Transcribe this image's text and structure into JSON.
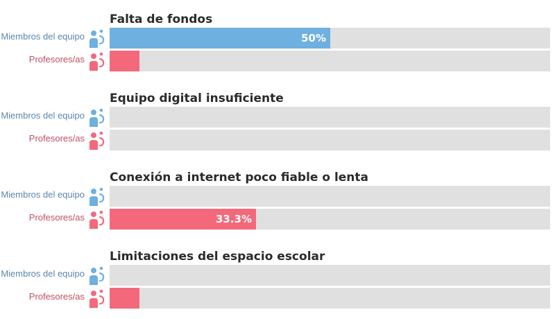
{
  "chart_data": {
    "type": "bar",
    "orientation": "horizontal",
    "xlim": [
      0,
      100
    ],
    "series_labels": [
      "Miembros del equipo",
      "Profesores/as"
    ],
    "series_colors": {
      "Miembros del equipo": "#6eb0df",
      "Profesores/as": "#f3697b"
    },
    "track_color": "#e0e0e0",
    "groups": [
      {
        "title": "Falta de fondos",
        "bars": [
          {
            "label": "Miembros del equipo",
            "series": "team",
            "value": 50,
            "value_label": "50%"
          },
          {
            "label": "Profesores/as",
            "series": "teachers",
            "value": 6.7,
            "value_label": ""
          }
        ]
      },
      {
        "title": "Equipo digital insuficiente",
        "bars": [
          {
            "label": "Miembros del equipo",
            "series": "team",
            "value": 0,
            "value_label": ""
          },
          {
            "label": "Profesores/as",
            "series": "teachers",
            "value": 0,
            "value_label": ""
          }
        ]
      },
      {
        "title": "Conexión a internet poco fiable o lenta",
        "bars": [
          {
            "label": "Miembros del equipo",
            "series": "team",
            "value": 0,
            "value_label": ""
          },
          {
            "label": "Profesores/as",
            "series": "teachers",
            "value": 33.3,
            "value_label": "33.3%"
          }
        ]
      },
      {
        "title": "Limitaciones del espacio escolar",
        "bars": [
          {
            "label": "Miembros del equipo",
            "series": "team",
            "value": 0,
            "value_label": ""
          },
          {
            "label": "Profesores/as",
            "series": "teachers",
            "value": 6.7,
            "value_label": ""
          }
        ]
      }
    ]
  },
  "icons": {
    "team": "team-member-person-icon",
    "teachers": "teacher-person-icon"
  }
}
